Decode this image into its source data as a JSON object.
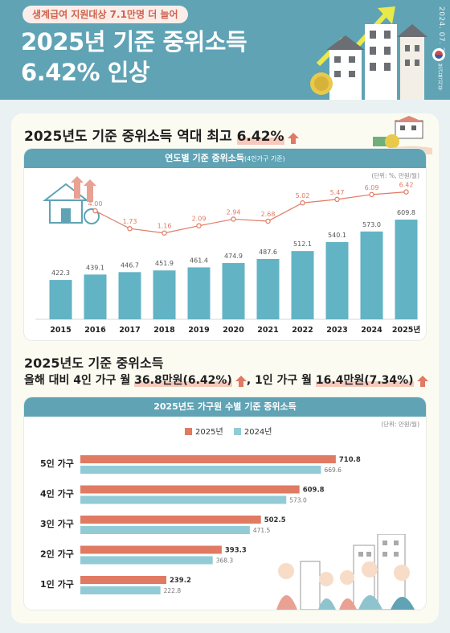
{
  "header": {
    "badge": "생계급여 지원대상 7.1만명 더 늘어",
    "title_line1": "2025년 기준 중위소득",
    "title_line2": "6.42% 인상",
    "date": "2024. 07. 25.",
    "ministry": "보건복지부"
  },
  "section1": {
    "title_prefix": "2025년도 기준 중위소득 역대 최고 ",
    "title_highlight": "6.42%",
    "panel_title": "연도별 기준 중위소득",
    "panel_title_sub": "(4인가구 기준)",
    "unit": "(단위: %, 만원/월)"
  },
  "section2": {
    "title_line1": "2025년도 기준 중위소득",
    "line2_a": "올해 대비 4인 가구 월 ",
    "line2_b": "36.8만원(6.42%)",
    "line2_c": ", 1인 가구 월 ",
    "line2_d": "16.4만원(7.34%)",
    "panel_title": "2025년도 가구원 수별 기준 중위소득",
    "unit": "(단위: 만원/월)",
    "legend_2025": "2025년",
    "legend_2024": "2024년"
  },
  "colors": {
    "teal": "#5fa3b5",
    "bar_teal": "#62b3c4",
    "coral": "#e07a63",
    "light_blue": "#92cbd6"
  },
  "chart_data": [
    {
      "type": "bar",
      "title": "연도별 기준 중위소득",
      "categories": [
        "2015",
        "2016",
        "2017",
        "2018",
        "2019",
        "2020",
        "2021",
        "2022",
        "2023",
        "2024",
        "2025년"
      ],
      "series": [
        {
          "name": "",
          "values": [
            422.3,
            439.1,
            446.7,
            451.9,
            461.4,
            474.9,
            487.6,
            512.1,
            540.1,
            573.0,
            609.8
          ]
        }
      ],
      "line_overlay": {
        "type": "line",
        "values": [
          null,
          4.0,
          1.73,
          1.16,
          2.09,
          2.94,
          2.68,
          5.02,
          5.47,
          6.09,
          6.42
        ]
      },
      "labels": [
        "422.3",
        "439.1",
        "446.7",
        "451.9",
        "461.4",
        "474.9",
        "487.6",
        "512.1",
        "540.1",
        "573.0",
        "609.8"
      ],
      "line_labels": [
        "",
        "4.00",
        "1.73",
        "1.16",
        "2.09",
        "2.94",
        "2.68",
        "5.02",
        "5.47",
        "6.09",
        "6.42"
      ]
    },
    {
      "type": "bar",
      "orientation": "horizontal",
      "title": "2025년도 가구원 수별 기준 중위소득",
      "categories": [
        "5인 가구",
        "4인 가구",
        "3인 가구",
        "2인 가구",
        "1인 가구"
      ],
      "series": [
        {
          "name": "2025년",
          "values": [
            710.8,
            609.8,
            502.5,
            393.3,
            239.2
          ],
          "labels": [
            "710.8",
            "609.8",
            "502.5",
            "393.3",
            "239.2"
          ]
        },
        {
          "name": "2024년",
          "values": [
            669.6,
            573.0,
            471.5,
            368.3,
            222.8
          ],
          "labels": [
            "669.6",
            "573.0",
            "471.5",
            "368.3",
            "222.8"
          ]
        }
      ]
    }
  ]
}
